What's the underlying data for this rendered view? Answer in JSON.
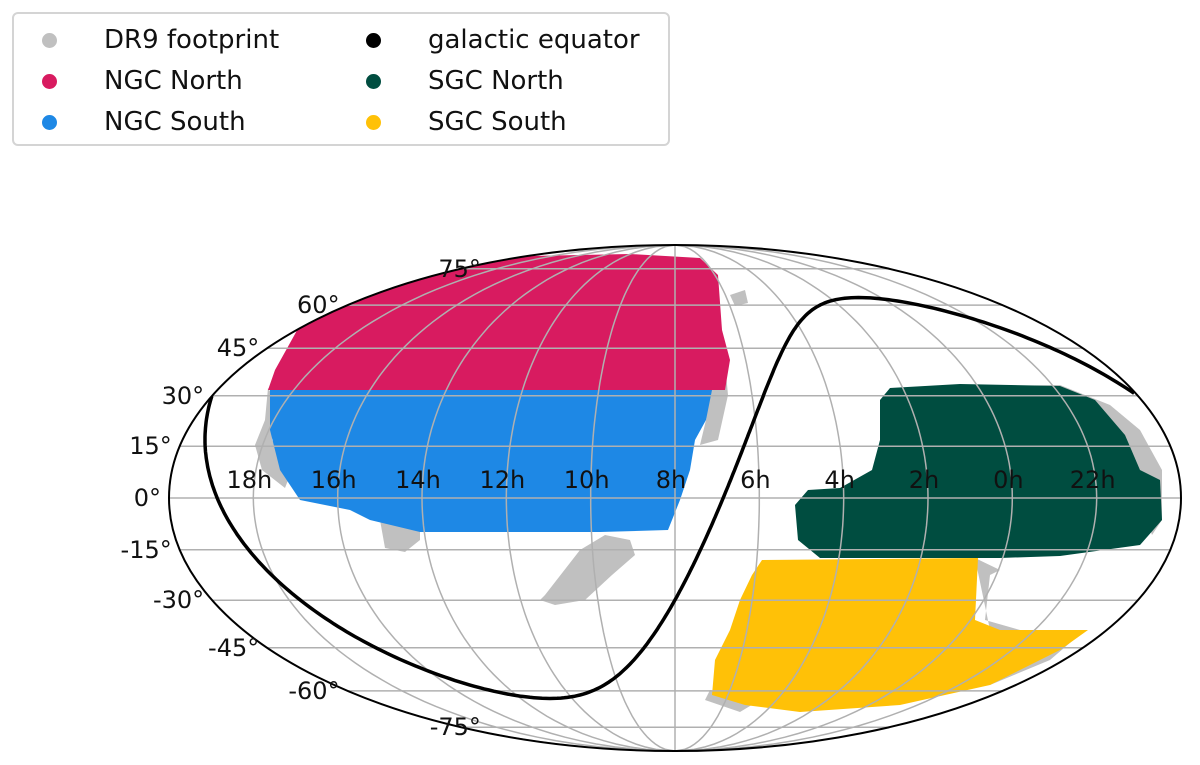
{
  "legend": {
    "items": [
      {
        "label": "DR9 footprint",
        "color": "#c0c0c0"
      },
      {
        "label": "NGC North",
        "color": "#d81b60"
      },
      {
        "label": "NGC South",
        "color": "#1e88e5"
      },
      {
        "label": "galactic equator",
        "color": "#000000"
      },
      {
        "label": "SGC North",
        "color": "#004d40"
      },
      {
        "label": "SGC South",
        "color": "#ffc107"
      }
    ]
  },
  "chart_data": {
    "type": "scatter",
    "projection": "mollweide",
    "ra_tick_labels": [
      "18h",
      "16h",
      "14h",
      "12h",
      "10h",
      "8h",
      "6h",
      "4h",
      "2h",
      "0h",
      "22h"
    ],
    "dec_tick_labels": [
      "75°",
      "60°",
      "45°",
      "30°",
      "15°",
      "0°",
      "-15°",
      "-30°",
      "-45°",
      "-60°",
      "-75°"
    ],
    "ra_center_hours": 8,
    "ra_direction": "increasing-left",
    "grid": true,
    "legend_placement": "top-left outside",
    "regions": [
      {
        "name": "DR9 footprint",
        "color": "#c0c0c0"
      },
      {
        "name": "NGC North",
        "color": "#d81b60",
        "ra_hours": [
          7.1,
          18.5
        ],
        "dec_deg": [
          32,
          83
        ]
      },
      {
        "name": "NGC South",
        "color": "#1e88e5",
        "ra_hours": [
          7.9,
          18.4
        ],
        "dec_deg": [
          -9,
          32
        ]
      },
      {
        "name": "SGC North",
        "color": "#004d40",
        "ra_hours": [
          20.9,
          5.0
        ],
        "dec_deg": [
          -10,
          32
        ]
      },
      {
        "name": "SGC South",
        "color": "#ffc107",
        "ra_hours": [
          20.5,
          5.3
        ],
        "dec_deg": [
          -65,
          -10
        ]
      },
      {
        "name": "galactic equator",
        "color": "#000000"
      }
    ]
  }
}
